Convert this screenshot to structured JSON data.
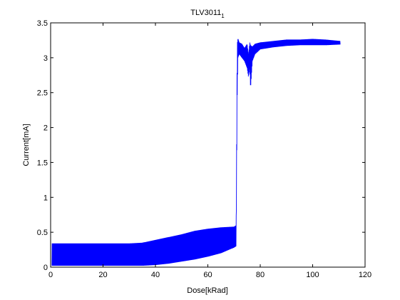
{
  "chart_data": {
    "type": "line",
    "title": "TLV3011",
    "title_subscript": "1",
    "xlabel": "Dose[kRad]",
    "ylabel": "Current[mA]",
    "xlim": [
      0,
      120
    ],
    "ylim": [
      0,
      3.5
    ],
    "xticks": [
      "0",
      "20",
      "40",
      "60",
      "80",
      "100",
      "120"
    ],
    "yticks": [
      "0",
      "0.5",
      "1",
      "1.5",
      "2",
      "2.5",
      "3",
      "3.5"
    ],
    "grid": false,
    "legend": "none",
    "series": [
      {
        "color": "#0000ff",
        "x": [
          0.5,
          5,
          10,
          15,
          20,
          25,
          30,
          35,
          40,
          45,
          50,
          55,
          60,
          65,
          70,
          70.8,
          71.2,
          71.5,
          72,
          73,
          74,
          75,
          75.5,
          76,
          76.3,
          77,
          78,
          80,
          85,
          90,
          95,
          100,
          105,
          110.5
        ],
        "y_low": [
          0.02,
          0.02,
          0.02,
          0.02,
          0.02,
          0.02,
          0.02,
          0.02,
          0.03,
          0.05,
          0.08,
          0.11,
          0.15,
          0.2,
          0.28,
          0.3,
          2.44,
          3.0,
          3.05,
          3.0,
          2.95,
          2.85,
          2.72,
          2.85,
          2.55,
          2.95,
          3.05,
          3.12,
          3.15,
          3.17,
          3.18,
          3.18,
          3.18,
          3.19
        ],
        "y_high": [
          0.34,
          0.34,
          0.34,
          0.34,
          0.34,
          0.34,
          0.34,
          0.35,
          0.39,
          0.43,
          0.47,
          0.52,
          0.55,
          0.57,
          0.58,
          0.6,
          3.2,
          3.28,
          3.22,
          3.2,
          3.14,
          3.2,
          3.05,
          3.22,
          3.18,
          3.16,
          3.2,
          3.22,
          3.24,
          3.26,
          3.26,
          3.27,
          3.26,
          3.24
        ]
      }
    ]
  }
}
